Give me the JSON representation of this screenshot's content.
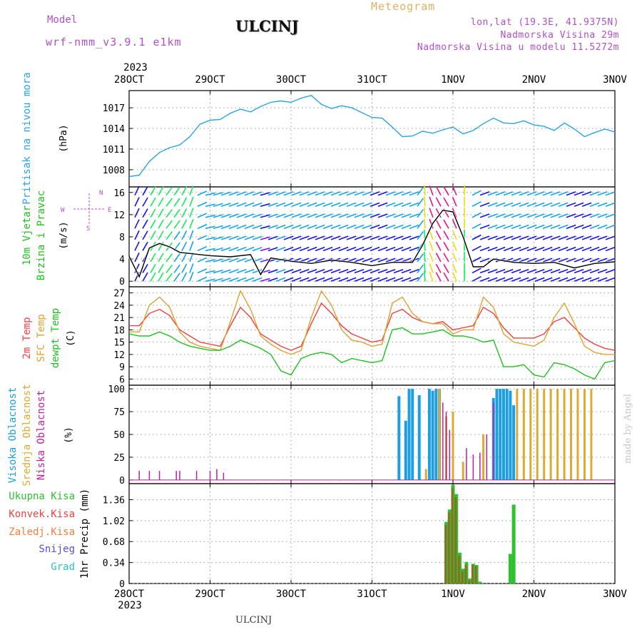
{
  "header": {
    "model_label": "Model",
    "model_name": "wrf-nmm_v3.9.1 e1km",
    "station": "ULCINJ",
    "title": "Meteogram",
    "coords": "lon,lat (19.3E, 41.9375N)",
    "altitude": "Nadmorska Visina 29m",
    "model_altitude": "Nadmorska Visina u modelu 11.5272m"
  },
  "footer": {
    "station": "ULCINJ",
    "credit": "made by Angel"
  },
  "time_axis": {
    "year": "2023",
    "ticks": [
      "28OCT",
      "29OCT",
      "30OCT",
      "31OCT",
      "1NOV",
      "2NOV",
      "3NOV"
    ],
    "start": "2023-10-28T00:00",
    "end": "2023-11-03T00:00"
  },
  "colors": {
    "pressure": "#2aa3e8",
    "temp2m": "#f04040",
    "sfc_temp": "#e0a030",
    "dewpt": "#20c020",
    "high_cloud": "#1e9ee0",
    "mid_cloud": "#dcaa30",
    "low_cloud": "#c020a0",
    "total_precip": "#30c030",
    "conv_precip": "#f04040",
    "frozen_precip": "#f08040",
    "snow": "#5050e0",
    "hail": "#30c0c0",
    "wind_speed": "#000000"
  },
  "chart_data": [
    {
      "type": "line",
      "title": "",
      "panel": "pressure",
      "ylabel": [
        "Pritisak na nivou mora",
        "(hPa)"
      ],
      "ylim": [
        1005.5,
        1019.5
      ],
      "yticks": [
        1008,
        1011,
        1014,
        1017
      ],
      "grid": true,
      "series": [
        {
          "name": "Pritisak na nivou mora",
          "x": [
            "2023-10-28T00:00",
            "2023-10-28T03:00",
            "2023-10-28T06:00",
            "2023-10-28T09:00",
            "2023-10-28T12:00",
            "2023-10-28T15:00",
            "2023-10-28T18:00",
            "2023-10-28T21:00",
            "2023-10-29T00:00",
            "2023-10-29T03:00",
            "2023-10-29T06:00",
            "2023-10-29T09:00",
            "2023-10-29T12:00",
            "2023-10-29T15:00",
            "2023-10-29T18:00",
            "2023-10-29T21:00",
            "2023-10-30T00:00",
            "2023-10-30T03:00",
            "2023-10-30T06:00",
            "2023-10-30T09:00",
            "2023-10-30T12:00",
            "2023-10-30T15:00",
            "2023-10-30T18:00",
            "2023-10-30T21:00",
            "2023-10-31T00:00",
            "2023-10-31T03:00",
            "2023-10-31T06:00",
            "2023-10-31T09:00",
            "2023-10-31T12:00",
            "2023-10-31T15:00",
            "2023-10-31T18:00",
            "2023-10-31T21:00",
            "2023-11-01T00:00",
            "2023-11-01T03:00",
            "2023-11-01T06:00",
            "2023-11-01T09:00",
            "2023-11-01T12:00",
            "2023-11-01T15:00",
            "2023-11-01T18:00",
            "2023-11-01T21:00",
            "2023-11-02T00:00",
            "2023-11-02T03:00",
            "2023-11-02T06:00",
            "2023-11-02T09:00",
            "2023-11-02T12:00",
            "2023-11-02T15:00",
            "2023-11-02T18:00",
            "2023-11-02T21:00",
            "2023-11-03T00:00"
          ],
          "values": [
            1007.0,
            1007.2,
            1009.2,
            1010.5,
            1011.2,
            1011.6,
            1012.8,
            1014.6,
            1015.2,
            1015.3,
            1016.2,
            1016.8,
            1016.4,
            1017.2,
            1017.8,
            1018.0,
            1017.8,
            1018.4,
            1018.8,
            1017.5,
            1016.9,
            1017.3,
            1017.0,
            1016.3,
            1015.6,
            1015.5,
            1014.2,
            1012.8,
            1012.9,
            1013.6,
            1013.3,
            1013.8,
            1014.2,
            1013.2,
            1013.7,
            1014.7,
            1015.5,
            1014.8,
            1014.7,
            1015.1,
            1014.5,
            1014.3,
            1013.7,
            1014.8,
            1013.9,
            1012.8,
            1013.4,
            1013.9,
            1013.5
          ]
        }
      ]
    },
    {
      "type": "line",
      "title": "",
      "panel": "wind",
      "ylabel": [
        "10m Vjetar",
        "Brzina i Pravac",
        "(m/s)"
      ],
      "compass": [
        "N",
        "E",
        "S",
        "W"
      ],
      "ylim": [
        -1,
        17
      ],
      "yticks": [
        0,
        4,
        8,
        12,
        16
      ],
      "grid": true,
      "series": [
        {
          "name": "10m Vjetar Brzina",
          "x": [
            "2023-10-28T00:00",
            "2023-10-28T03:00",
            "2023-10-28T06:00",
            "2023-10-28T09:00",
            "2023-10-28T12:00",
            "2023-10-28T15:00",
            "2023-10-28T18:00",
            "2023-10-28T21:00",
            "2023-10-29T00:00",
            "2023-10-29T06:00",
            "2023-10-29T12:00",
            "2023-10-29T15:00",
            "2023-10-29T18:00",
            "2023-10-30T00:00",
            "2023-10-30T06:00",
            "2023-10-30T12:00",
            "2023-10-30T18:00",
            "2023-10-31T00:00",
            "2023-10-31T06:00",
            "2023-10-31T12:00",
            "2023-10-31T15:00",
            "2023-10-31T18:00",
            "2023-10-31T21:00",
            "2023-11-01T00:00",
            "2023-11-01T03:00",
            "2023-11-01T06:00",
            "2023-11-01T09:00",
            "2023-11-01T12:00",
            "2023-11-01T18:00",
            "2023-11-02T00:00",
            "2023-11-02T06:00",
            "2023-11-02T12:00",
            "2023-11-02T18:00",
            "2023-11-03T00:00"
          ],
          "values": [
            4.5,
            0.8,
            6.0,
            6.8,
            6.2,
            5.2,
            5.0,
            4.8,
            4.6,
            4.4,
            4.8,
            1.2,
            4.2,
            3.6,
            3.2,
            3.8,
            3.4,
            2.8,
            3.4,
            3.4,
            6.5,
            10.4,
            12.8,
            12.5,
            8.0,
            2.6,
            2.6,
            4.0,
            3.4,
            3.2,
            3.4,
            2.4,
            3.2,
            3.5
          ]
        }
      ],
      "wind_direction_deg": [
        200,
        210,
        210,
        210,
        220,
        210,
        200,
        260,
        255,
        250,
        250,
        255,
        250,
        250,
        250,
        250,
        250,
        250,
        250,
        250,
        180,
        160,
        150,
        150,
        170,
        250,
        250,
        250,
        250,
        250,
        250,
        250,
        250,
        250
      ]
    },
    {
      "type": "line",
      "title": "",
      "panel": "temperature",
      "ylabel": [
        "2m Temp",
        "SFC Temp",
        "dewpt Temp",
        "(C)"
      ],
      "ylim": [
        4.5,
        28.5
      ],
      "yticks": [
        6,
        9,
        12,
        15,
        18,
        21,
        24,
        27
      ],
      "grid": true,
      "x": [
        "2023-10-28T00:00",
        "2023-10-28T03:00",
        "2023-10-28T06:00",
        "2023-10-28T09:00",
        "2023-10-28T12:00",
        "2023-10-28T15:00",
        "2023-10-28T18:00",
        "2023-10-28T21:00",
        "2023-10-29T00:00",
        "2023-10-29T03:00",
        "2023-10-29T06:00",
        "2023-10-29T09:00",
        "2023-10-29T12:00",
        "2023-10-29T15:00",
        "2023-10-29T18:00",
        "2023-10-29T21:00",
        "2023-10-30T00:00",
        "2023-10-30T03:00",
        "2023-10-30T06:00",
        "2023-10-30T09:00",
        "2023-10-30T12:00",
        "2023-10-30T15:00",
        "2023-10-30T18:00",
        "2023-10-30T21:00",
        "2023-10-31T00:00",
        "2023-10-31T03:00",
        "2023-10-31T06:00",
        "2023-10-31T09:00",
        "2023-10-31T12:00",
        "2023-10-31T15:00",
        "2023-10-31T18:00",
        "2023-10-31T21:00",
        "2023-11-01T00:00",
        "2023-11-01T03:00",
        "2023-11-01T06:00",
        "2023-11-01T09:00",
        "2023-11-01T12:00",
        "2023-11-01T15:00",
        "2023-11-01T18:00",
        "2023-11-01T21:00",
        "2023-11-02T00:00",
        "2023-11-02T03:00",
        "2023-11-02T06:00",
        "2023-11-02T09:00",
        "2023-11-02T12:00",
        "2023-11-02T15:00",
        "2023-11-02T18:00",
        "2023-11-02T21:00",
        "2023-11-03T00:00"
      ],
      "series": [
        {
          "name": "2m Temp",
          "values": [
            19.0,
            19.0,
            22.0,
            23.0,
            21.5,
            18.0,
            16.5,
            15.0,
            14.5,
            14.0,
            19.0,
            23.5,
            21.0,
            17.0,
            15.5,
            14.0,
            13.0,
            14.0,
            19.5,
            24.5,
            22.0,
            19.0,
            17.0,
            16.0,
            15.0,
            15.5,
            22.0,
            23.0,
            21.0,
            20.0,
            19.5,
            20.0,
            18.0,
            18.5,
            19.0,
            23.5,
            22.0,
            18.5,
            16.0,
            16.0,
            16.0,
            17.0,
            20.0,
            21.0,
            18.5,
            16.0,
            14.5,
            13.5,
            13.0
          ]
        },
        {
          "name": "SFC Temp",
          "values": [
            17.5,
            17.5,
            24.0,
            26.0,
            23.5,
            17.5,
            15.0,
            14.0,
            13.5,
            13.0,
            20.0,
            27.5,
            23.0,
            16.5,
            14.5,
            13.0,
            12.0,
            13.0,
            21.0,
            27.5,
            24.0,
            18.0,
            15.5,
            15.0,
            14.0,
            14.5,
            24.5,
            26.0,
            22.0,
            20.0,
            19.5,
            19.5,
            17.0,
            18.0,
            18.0,
            26.0,
            23.5,
            17.0,
            15.0,
            14.5,
            14.0,
            15.5,
            21.0,
            24.5,
            19.5,
            14.0,
            12.5,
            12.0,
            12.0
          ]
        },
        {
          "name": "dewpt Temp",
          "values": [
            17.0,
            16.5,
            16.5,
            17.5,
            16.5,
            15.0,
            14.0,
            13.5,
            13.0,
            13.0,
            14.0,
            15.5,
            14.5,
            13.5,
            12.0,
            8.0,
            7.0,
            11.0,
            12.0,
            12.5,
            12.0,
            10.0,
            11.0,
            10.5,
            10.0,
            10.5,
            18.0,
            18.5,
            17.0,
            17.0,
            17.5,
            18.0,
            16.5,
            16.5,
            16.0,
            15.0,
            15.5,
            9.0,
            9.0,
            9.5,
            7.0,
            6.5,
            10.0,
            9.5,
            8.5,
            7.0,
            6.0,
            10.0,
            10.5
          ]
        }
      ]
    },
    {
      "type": "bar",
      "title": "",
      "panel": "cloud",
      "ylabel": [
        "Visoka Oblacnost",
        "Srednja Oblacnost",
        "Niska Oblacnost",
        "(%)"
      ],
      "ylim": [
        -4,
        104
      ],
      "yticks": [
        0,
        25,
        50,
        75,
        100
      ],
      "grid": true,
      "series": [
        {
          "name": "Visoka Oblacnost",
          "x": [
            "2023-10-31T08:00",
            "2023-10-31T10:00",
            "2023-10-31T11:00",
            "2023-10-31T12:00",
            "2023-10-31T14:00",
            "2023-10-31T17:00",
            "2023-10-31T18:00",
            "2023-10-31T19:00",
            "2023-10-31T20:00",
            "2023-11-01T12:00",
            "2023-11-01T13:00",
            "2023-11-01T14:00",
            "2023-11-01T15:00",
            "2023-11-01T16:00",
            "2023-11-01T17:00",
            "2023-11-01T18:00"
          ],
          "values": [
            92,
            65,
            100,
            100,
            93,
            100,
            98,
            100,
            100,
            90,
            100,
            100,
            100,
            100,
            98,
            82
          ]
        },
        {
          "name": "Srednja Oblacnost",
          "x": [
            "2023-10-31T16:00",
            "2023-10-31T20:00",
            "2023-10-31T22:00",
            "2023-11-01T00:00",
            "2023-11-01T03:00",
            "2023-11-01T09:00",
            "2023-11-01T19:00",
            "2023-11-01T21:00",
            "2023-11-01T23:00",
            "2023-11-02T01:00",
            "2023-11-02T03:00",
            "2023-11-02T05:00",
            "2023-11-02T07:00",
            "2023-11-02T09:00",
            "2023-11-02T11:00",
            "2023-11-02T13:00",
            "2023-11-02T15:00",
            "2023-11-02T17:00"
          ],
          "values": [
            12,
            100,
            70,
            75,
            20,
            50,
            100,
            100,
            100,
            100,
            100,
            100,
            100,
            100,
            100,
            100,
            100,
            100
          ]
        },
        {
          "name": "Niska Oblacnost",
          "x": [
            "2023-10-28T03:00",
            "2023-10-28T06:00",
            "2023-10-28T09:00",
            "2023-10-28T14:00",
            "2023-10-28T15:00",
            "2023-10-28T20:00",
            "2023-10-29T00:00",
            "2023-10-29T02:00",
            "2023-10-29T04:00",
            "2023-10-31T21:00",
            "2023-10-31T22:00",
            "2023-10-31T23:00",
            "2023-11-01T04:00",
            "2023-11-01T06:00",
            "2023-11-01T08:00",
            "2023-11-01T10:00",
            "2023-11-01T12:00"
          ],
          "values": [
            10,
            10,
            10,
            10,
            10,
            10,
            10,
            12,
            8,
            85,
            75,
            55,
            35,
            28,
            30,
            50,
            85
          ]
        }
      ]
    },
    {
      "type": "bar",
      "title": "",
      "panel": "precipitation",
      "ylabel": [
        "1hr Precip (mm)"
      ],
      "legend": [
        "Ukupna Kisa",
        "Konvek.Kisa",
        "Zaledj.Kisa",
        "Snijeg",
        "Grad"
      ],
      "ylim": [
        0,
        1.62
      ],
      "yticks": [
        0,
        0.34,
        0.68,
        1.02,
        1.36
      ],
      "grid": true,
      "series": [
        {
          "name": "Ukupna Kisa",
          "x": [
            "2023-10-31T22:00",
            "2023-10-31T23:00",
            "2023-11-01T00:00",
            "2023-11-01T01:00",
            "2023-11-01T02:00",
            "2023-11-01T03:00",
            "2023-11-01T04:00",
            "2023-11-01T05:00",
            "2023-11-01T06:00",
            "2023-11-01T07:00",
            "2023-11-01T08:00",
            "2023-11-01T09:00",
            "2023-11-01T17:00",
            "2023-11-01T18:00"
          ],
          "values": [
            1.0,
            1.2,
            1.6,
            1.45,
            0.5,
            0.24,
            0.35,
            0.08,
            0.32,
            0.3,
            0.03,
            0.0,
            0.48,
            1.28
          ]
        },
        {
          "name": "Konvek.Kisa",
          "x": [
            "2023-10-31T22:00",
            "2023-10-31T23:00",
            "2023-11-01T00:00",
            "2023-11-01T01:00",
            "2023-11-01T02:00",
            "2023-11-01T03:00",
            "2023-11-01T04:00",
            "2023-11-01T05:00",
            "2023-11-01T06:00",
            "2023-11-01T07:00",
            "2023-11-01T08:00",
            "2023-11-01T09:00",
            "2023-11-01T17:00",
            "2023-11-01T18:00"
          ],
          "values": [
            0.95,
            1.15,
            1.55,
            1.4,
            0.45,
            0.2,
            0.3,
            0.05,
            0.3,
            0.28,
            0.0,
            0.0,
            0.0,
            0.0
          ]
        }
      ]
    }
  ]
}
